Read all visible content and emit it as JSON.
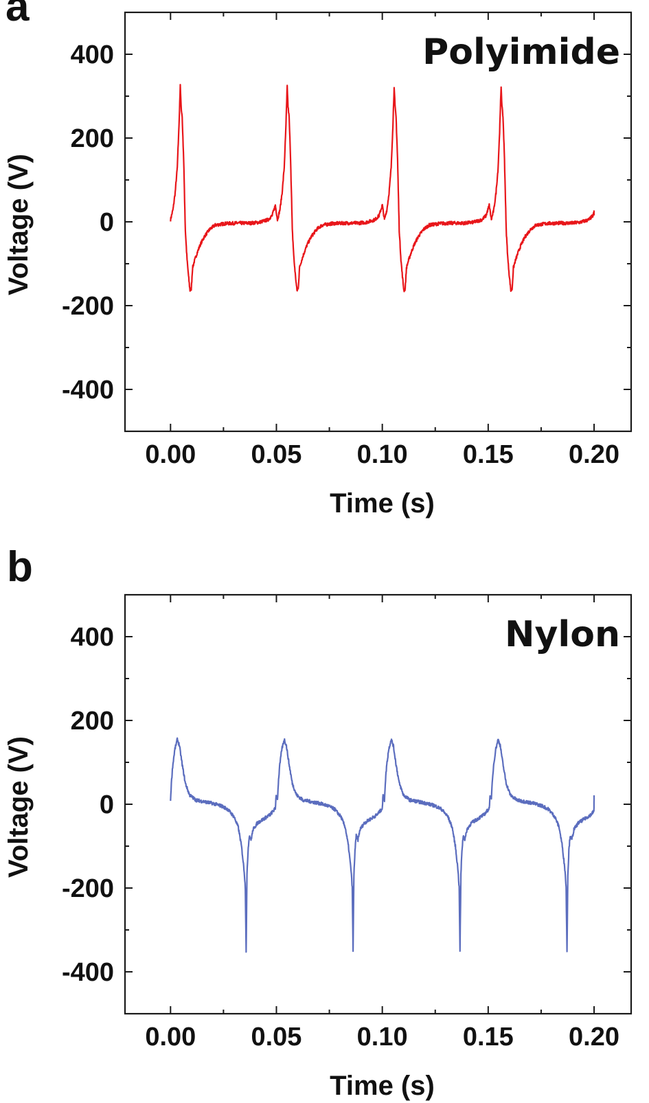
{
  "chart_data": [
    {
      "type": "line",
      "panel_letter": "a",
      "title": "Polyimide",
      "title_placement": "top-right inside plot",
      "xlabel": "Time (s)",
      "ylabel": "Voltage (V)",
      "xlim": [
        -0.0215,
        0.2175
      ],
      "ylim": [
        -500,
        500
      ],
      "xticks": [
        0.0,
        0.05,
        0.1,
        0.15,
        0.2
      ],
      "xtick_labels": [
        "0.00",
        "0.05",
        "0.10",
        "0.15",
        "0.20"
      ],
      "xminor_ticks": [
        0.025,
        0.075,
        0.125,
        0.175
      ],
      "yticks": [
        400,
        200,
        0,
        -200,
        -400
      ],
      "ytick_labels": [
        "400",
        "200",
        "0",
        "-200",
        "-400"
      ],
      "yminor_ticks": [
        300,
        100,
        -100,
        -300
      ],
      "grid": false,
      "legend": "none",
      "series": [
        {
          "name": "Polyimide",
          "color": "#e8161a",
          "period_s": 0.0505,
          "cycles": 4,
          "cycle_shape": {
            "t": [
              0.0,
              0.0012,
              0.0022,
              0.0032,
              0.004,
              0.0046,
              0.005,
              0.0055,
              0.0062,
              0.007,
              0.0078,
              0.0085,
              0.0092,
              0.0098,
              0.0104,
              0.0112,
              0.0125,
              0.014,
              0.016,
              0.0185,
              0.021,
              0.026,
              0.032,
              0.038,
              0.042,
              0.046,
              0.048,
              0.0495,
              0.0505
            ],
            "v": [
              5,
              30,
              70,
              130,
              230,
              324,
              275,
              250,
              150,
              -20,
              -90,
              -130,
              -164,
              -160,
              -110,
              -95,
              -75,
              -55,
              -35,
              -18,
              -8,
              -4,
              -3,
              -3,
              -1,
              5,
              15,
              40,
              5
            ]
          },
          "end_point": {
            "t": 0.2,
            "v": 18
          },
          "peaks_v": [
            324,
            324,
            322,
            326
          ],
          "peak_times_s": [
            0.0046,
            0.0552,
            0.1068,
            0.1575
          ],
          "minima_v": [
            -167,
            -164,
            -165,
            -166
          ],
          "minima_times_s": [
            0.0095,
            0.06,
            0.111,
            0.1615
          ]
        }
      ]
    },
    {
      "type": "line",
      "panel_letter": "b",
      "title": "Nylon",
      "title_placement": "top-right inside plot",
      "xlabel": "Time (s)",
      "ylabel": "Voltage (V)",
      "xlim": [
        -0.0215,
        0.2175
      ],
      "ylim": [
        -500,
        500
      ],
      "xticks": [
        0.0,
        0.05,
        0.1,
        0.15,
        0.2
      ],
      "xtick_labels": [
        "0.00",
        "0.05",
        "0.10",
        "0.15",
        "0.20"
      ],
      "xminor_ticks": [
        0.025,
        0.075,
        0.125,
        0.175
      ],
      "yticks": [
        400,
        200,
        0,
        -200,
        -400
      ],
      "ytick_labels": [
        "400",
        "200",
        "0",
        "-200",
        "-400"
      ],
      "yminor_ticks": [
        300,
        100,
        -100,
        -300
      ],
      "grid": false,
      "legend": "none",
      "series": [
        {
          "name": "Nylon",
          "color": "#5b6dbe",
          "period_s": 0.0505,
          "cycles": 4,
          "cycle_shape": {
            "t": [
              0.0,
              0.0004,
              0.001,
              0.002,
              0.0032,
              0.0042,
              0.0055,
              0.007,
              0.009,
              0.012,
              0.016,
              0.02,
              0.024,
              0.027,
              0.03,
              0.032,
              0.0335,
              0.0348,
              0.0353,
              0.0357,
              0.0361,
              0.0366,
              0.0372,
              0.038,
              0.039,
              0.041,
              0.044,
              0.047,
              0.0495,
              0.05
            ],
            "v": [
              10,
              50,
              90,
              130,
              155,
              140,
              95,
              50,
              22,
              10,
              6,
              2,
              -4,
              -12,
              -30,
              -55,
              -100,
              -160,
              -200,
              -350,
              -170,
              -110,
              -75,
              -85,
              -60,
              -45,
              -35,
              -25,
              -10,
              35
            ]
          },
          "end_point": {
            "t": 0.2,
            "v": 20
          },
          "peaks_v": [
            155,
            155,
            156,
            156
          ],
          "peak_times_s": [
            0.0032,
            0.0537,
            0.1042,
            0.1547
          ],
          "minima_v": [
            -350,
            -350,
            -360,
            -352
          ],
          "minima_times_s": [
            0.0357,
            0.087,
            0.138,
            0.189
          ]
        }
      ]
    }
  ]
}
